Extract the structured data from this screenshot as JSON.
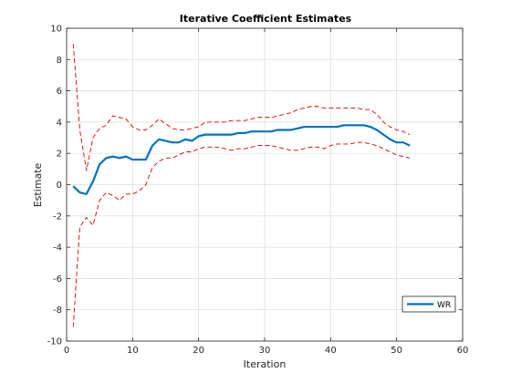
{
  "chart_data": {
    "type": "line",
    "title": "Iterative Coefficient Estimates",
    "xlabel": "Iteration",
    "ylabel": "Estimate",
    "xlim": [
      0,
      60
    ],
    "ylim": [
      -10,
      10
    ],
    "xticks": [
      "0",
      "10",
      "20",
      "30",
      "40",
      "50",
      "60"
    ],
    "yticks": [
      "-10",
      "-8",
      "-6",
      "-4",
      "-2",
      "0",
      "2",
      "4",
      "6",
      "8",
      "10"
    ],
    "grid": true,
    "legend_position": "bottom-right",
    "x": [
      1,
      2,
      3,
      4,
      5,
      6,
      7,
      8,
      9,
      10,
      11,
      12,
      13,
      14,
      15,
      16,
      17,
      18,
      19,
      20,
      21,
      22,
      23,
      24,
      25,
      26,
      27,
      28,
      29,
      30,
      31,
      32,
      33,
      34,
      35,
      36,
      37,
      38,
      39,
      40,
      41,
      42,
      43,
      44,
      45,
      46,
      47,
      48,
      49,
      50,
      51,
      52
    ],
    "series": [
      {
        "name": "WR",
        "color": "#0072BD",
        "style": "solid",
        "values": [
          -0.1,
          -0.5,
          -0.6,
          0.2,
          1.3,
          1.7,
          1.8,
          1.7,
          1.8,
          1.6,
          1.6,
          1.6,
          2.5,
          2.9,
          2.8,
          2.7,
          2.7,
          2.9,
          2.8,
          3.1,
          3.2,
          3.2,
          3.2,
          3.2,
          3.2,
          3.3,
          3.3,
          3.4,
          3.4,
          3.4,
          3.4,
          3.5,
          3.5,
          3.5,
          3.6,
          3.7,
          3.7,
          3.7,
          3.7,
          3.7,
          3.7,
          3.8,
          3.8,
          3.8,
          3.8,
          3.7,
          3.5,
          3.2,
          2.9,
          2.7,
          2.7,
          2.5
        ]
      },
      {
        "name": "",
        "color": "#D40000",
        "style": "dashed",
        "values": [
          9.0,
          3.5,
          0.9,
          3.0,
          3.6,
          3.8,
          4.4,
          4.3,
          4.2,
          3.7,
          3.5,
          3.5,
          3.8,
          4.2,
          3.9,
          3.6,
          3.5,
          3.5,
          3.6,
          3.7,
          4.0,
          4.0,
          4.0,
          4.0,
          4.1,
          4.1,
          4.1,
          4.2,
          4.3,
          4.3,
          4.3,
          4.4,
          4.5,
          4.6,
          4.8,
          4.9,
          5.0,
          5.0,
          4.9,
          4.9,
          4.9,
          4.9,
          4.9,
          4.9,
          4.8,
          4.8,
          4.5,
          4.0,
          3.7,
          3.5,
          3.4,
          3.2
        ]
      },
      {
        "name": "",
        "color": "#D40000",
        "style": "dashed",
        "values": [
          -9.1,
          -2.7,
          -2.1,
          -2.6,
          -1.0,
          -0.5,
          -0.7,
          -1.0,
          -0.6,
          -0.6,
          -0.4,
          0.0,
          1.1,
          1.5,
          1.7,
          1.7,
          1.9,
          2.1,
          2.1,
          2.3,
          2.4,
          2.4,
          2.4,
          2.3,
          2.2,
          2.3,
          2.3,
          2.4,
          2.5,
          2.5,
          2.5,
          2.4,
          2.3,
          2.2,
          2.2,
          2.3,
          2.4,
          2.4,
          2.3,
          2.5,
          2.6,
          2.6,
          2.6,
          2.7,
          2.7,
          2.6,
          2.5,
          2.3,
          2.1,
          1.9,
          1.8,
          1.7
        ]
      }
    ]
  }
}
